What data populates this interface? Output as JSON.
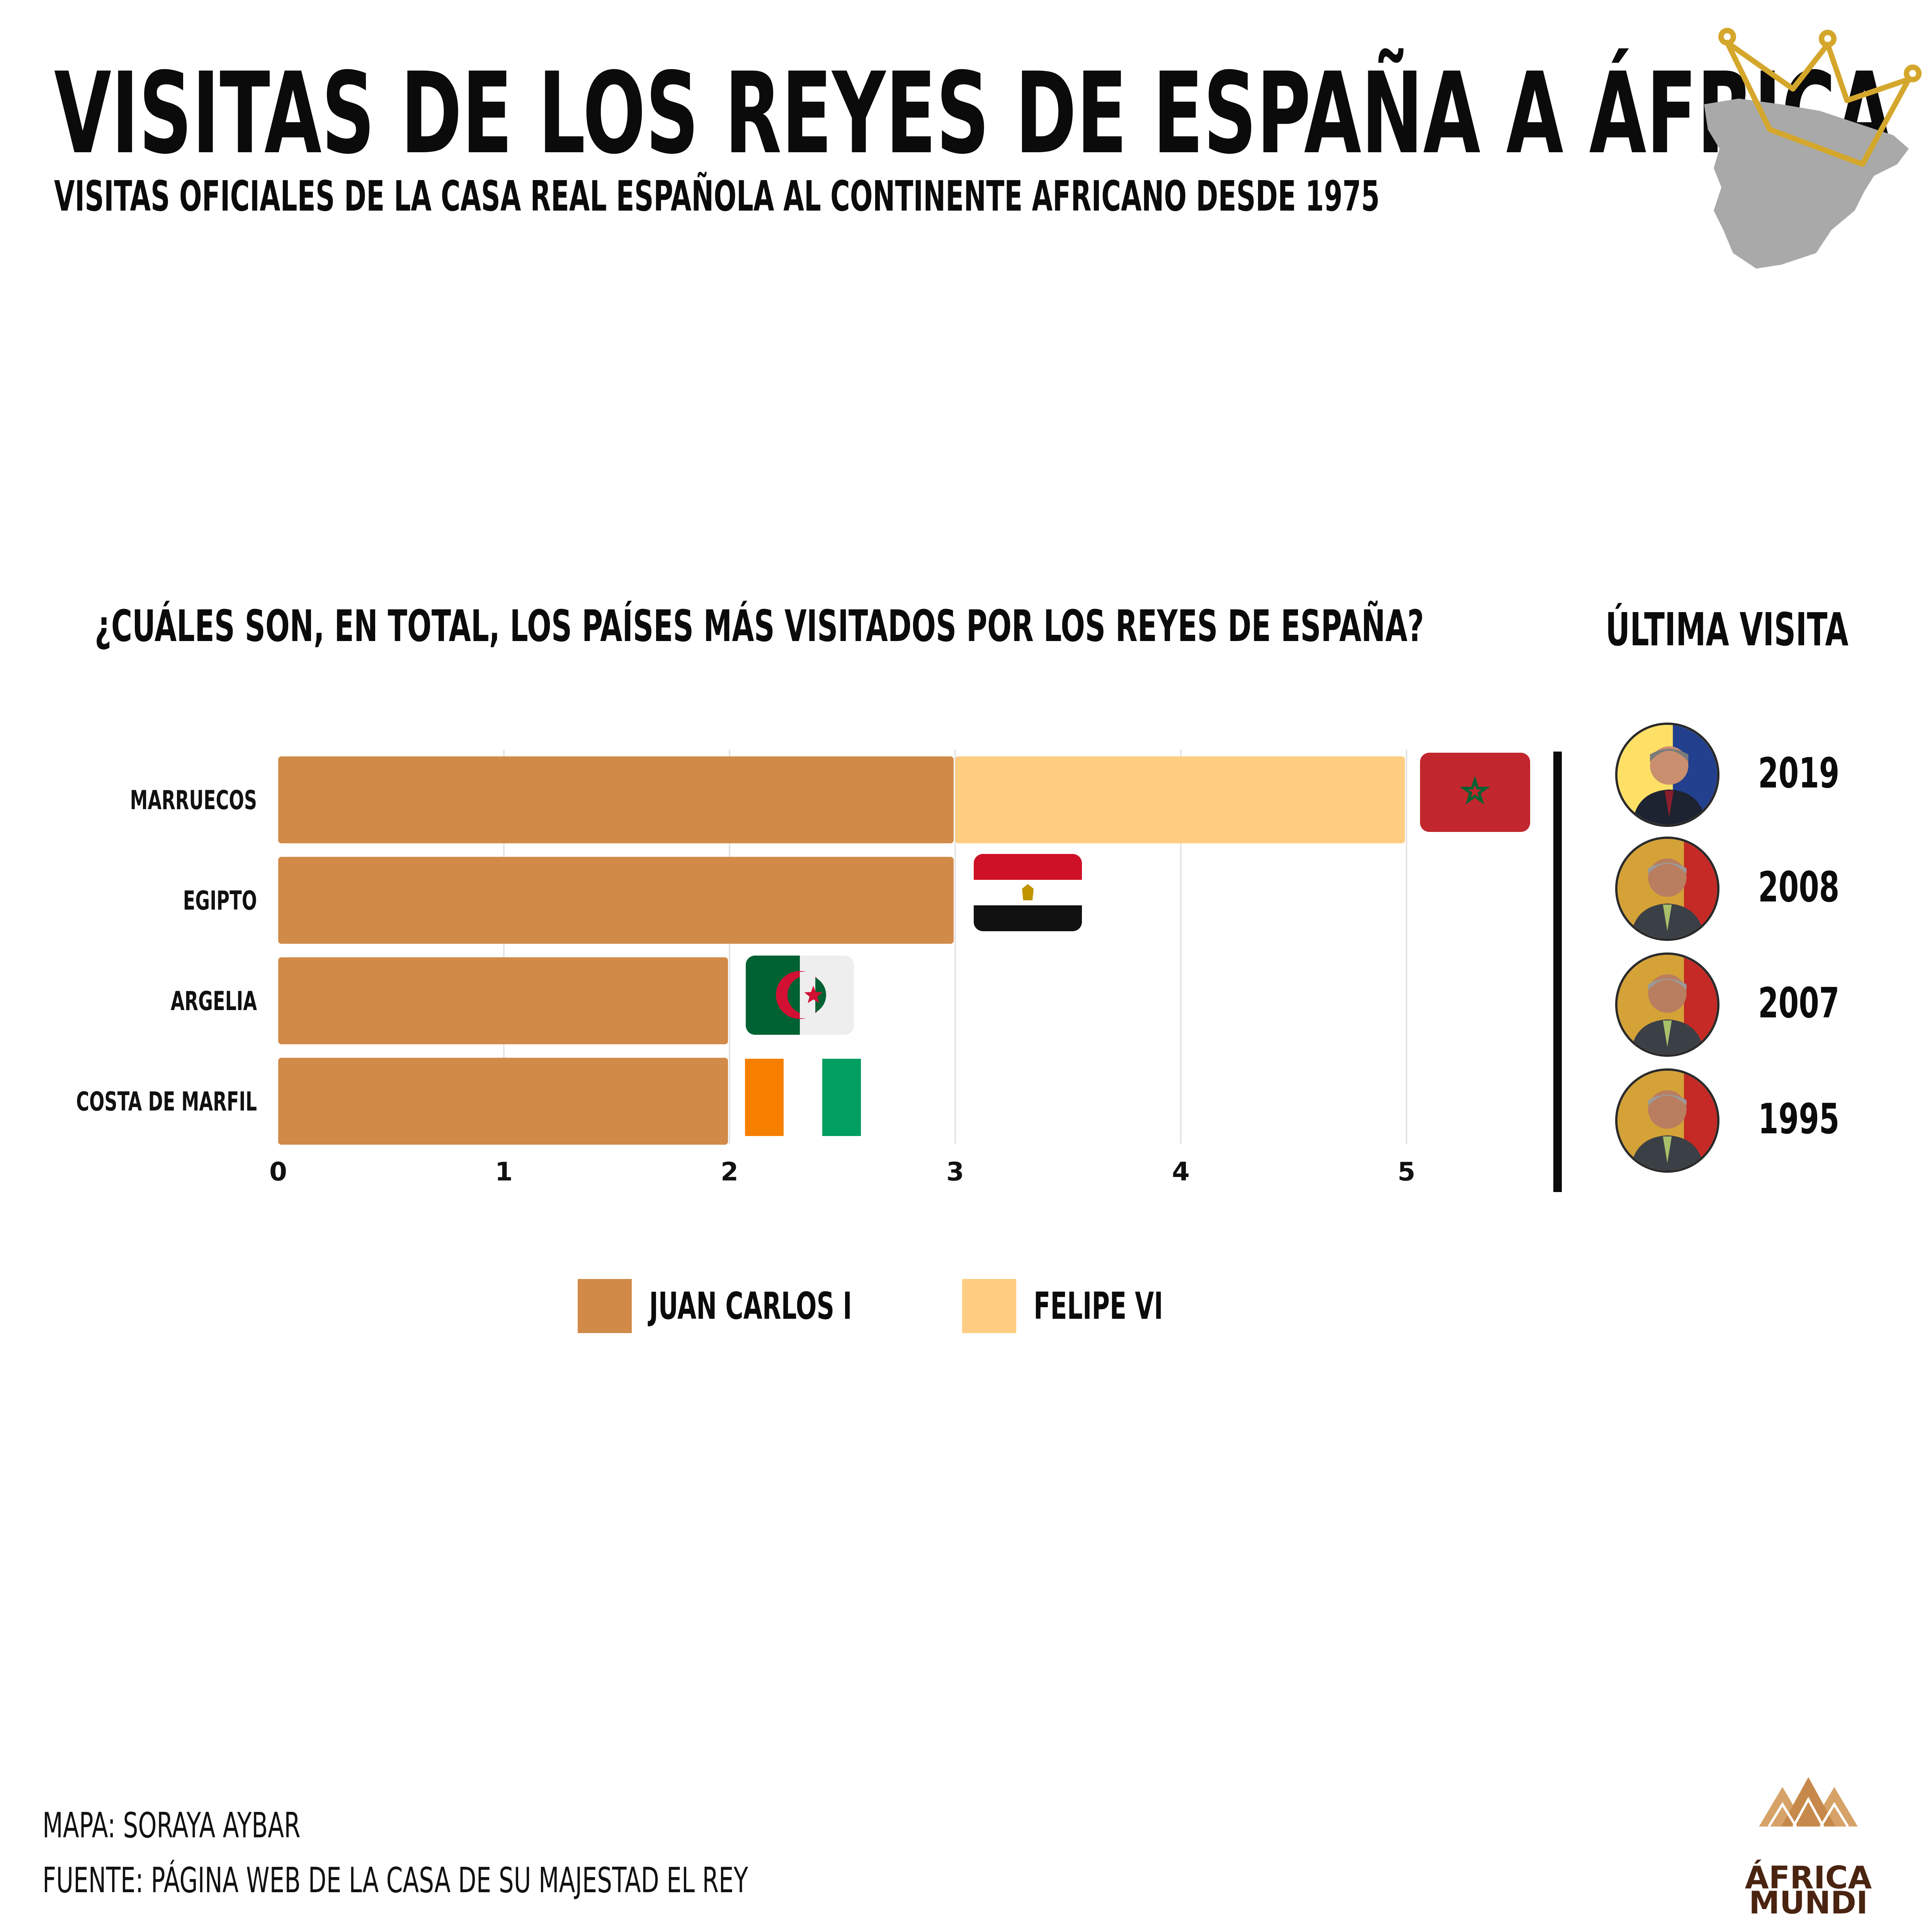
{
  "header": {
    "title": "VISITAS DE LOS REYES DE ESPAÑA A ÁFRICA",
    "subtitle": "VISITAS OFICIALES DE LA CASA REAL ESPAÑOLA AL CONTINENTE AFRICANO DESDE 1975"
  },
  "question": "¿CUÁLES SON, EN TOTAL, LOS PAÍSES MÁS VISITADOS POR LOS REYES DE ESPAÑA?",
  "last_visit": {
    "heading": "ÚLTIMA VISITA",
    "items": [
      {
        "year": "2019",
        "king": "Felipe VI"
      },
      {
        "year": "2008",
        "king": "Juan Carlos I"
      },
      {
        "year": "2007",
        "king": "Juan Carlos I"
      },
      {
        "year": "1995",
        "king": "Juan Carlos I"
      }
    ]
  },
  "chart_data": {
    "type": "bar",
    "orientation": "horizontal",
    "stacked": true,
    "title": "",
    "xlabel": "",
    "ylabel": "",
    "categories": [
      "MARRUECOS",
      "EGIPTO",
      "ARGELIA",
      "COSTA DE MARFIL"
    ],
    "series": [
      {
        "name": "JUAN CARLOS I",
        "values": [
          3,
          3,
          2,
          2
        ],
        "color": "#d18a48"
      },
      {
        "name": "FELIPE VI",
        "values": [
          2,
          0,
          0,
          0
        ],
        "color": "#fecd82"
      }
    ],
    "xlim": [
      0,
      5
    ],
    "xticks": [
      "0",
      "1",
      "2",
      "3",
      "4",
      "5"
    ],
    "grid": true,
    "legend_position": "bottom",
    "flags": [
      "morocco-flag",
      "egypt-flag",
      "algeria-flag",
      "ivory-coast-flag"
    ]
  },
  "legend": {
    "items": [
      {
        "label": "JUAN CARLOS I",
        "color": "#d18a48"
      },
      {
        "label": "FELIPE VI",
        "color": "#fecd82"
      }
    ]
  },
  "credits": {
    "map": "MAPA: SORAYA AYBAR",
    "source": "FUENTE: PÁGINA WEB DE LA CASA DE SU MAJESTAD EL REY"
  },
  "logo": {
    "line1": "ÁFRICA",
    "line2": "MUNDI"
  },
  "colors": {
    "gold": "#d4a72c",
    "map_gray": "#a9a9a9",
    "text": "#0b0b0b"
  }
}
